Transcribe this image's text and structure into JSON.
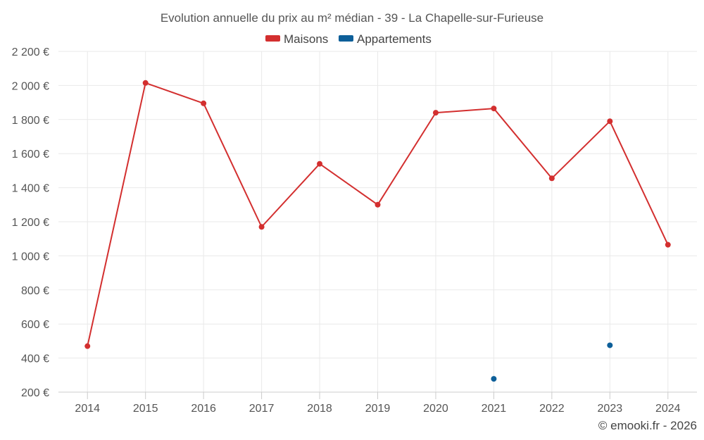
{
  "chart_data": {
    "type": "line",
    "title": "Evolution annuelle du prix au m² médian - 39 - La Chapelle-sur-Furieuse",
    "categories": [
      "2014",
      "2015",
      "2016",
      "2017",
      "2018",
      "2019",
      "2020",
      "2021",
      "2022",
      "2023",
      "2024"
    ],
    "series": [
      {
        "name": "Maisons",
        "color": "#d32f2f",
        "values": [
          470,
          2015,
          1895,
          1170,
          1540,
          1300,
          1840,
          1865,
          1455,
          1790,
          1065
        ]
      },
      {
        "name": "Appartements",
        "color": "#0d5f99",
        "values": [
          null,
          null,
          null,
          null,
          null,
          null,
          null,
          278,
          null,
          475,
          null
        ]
      }
    ],
    "ylim": [
      200,
      2200
    ],
    "yticks": [
      200,
      400,
      600,
      800,
      1000,
      1200,
      1400,
      1600,
      1800,
      2000,
      2200
    ],
    "ytick_labels": [
      "200 €",
      "400 €",
      "600 €",
      "800 €",
      "1 000 €",
      "1 200 €",
      "1 400 €",
      "1 600 €",
      "1 800 €",
      "2 000 €",
      "2 200 €"
    ],
    "xlabel": "",
    "ylabel": "",
    "grid": true,
    "legend_position": "top-center"
  },
  "credit": "© emooki.fr - 2026"
}
